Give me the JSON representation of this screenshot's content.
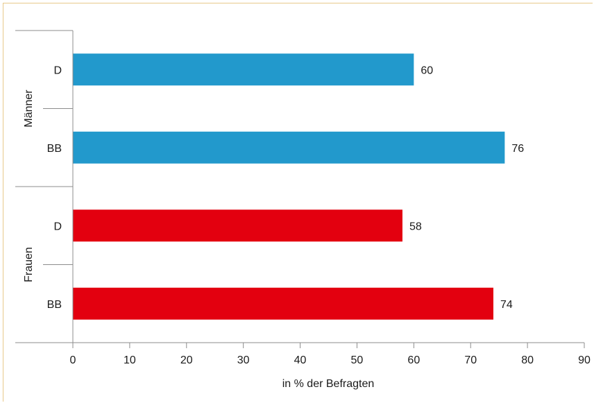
{
  "chart_data": {
    "type": "bar",
    "orientation": "horizontal",
    "title": "",
    "xlabel": "in % der Befragten",
    "ylabel": "",
    "xlim": [
      0,
      90
    ],
    "x_ticks": [
      0,
      10,
      20,
      30,
      40,
      50,
      60,
      70,
      80,
      90
    ],
    "grid": false,
    "groups": [
      {
        "label": "Männer",
        "color": "#2299cc",
        "bars": [
          {
            "category": "D",
            "value": 60,
            "value_label": "60"
          },
          {
            "category": "BB",
            "value": 76,
            "value_label": "76"
          }
        ]
      },
      {
        "label": "Frauen",
        "color": "#e3000f",
        "bars": [
          {
            "category": "D",
            "value": 58,
            "value_label": "58"
          },
          {
            "category": "BB",
            "value": 74,
            "value_label": "74"
          }
        ]
      }
    ]
  }
}
